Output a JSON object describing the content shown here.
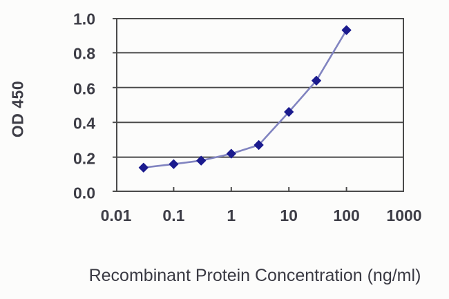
{
  "chart_data": {
    "type": "line",
    "title": "",
    "xlabel": "Recombinant Protein Concentration (ng/ml)",
    "ylabel": "OD 450",
    "x_scale": "log",
    "xlim": [
      0.01,
      1000
    ],
    "ylim": [
      0.0,
      1.0
    ],
    "x": [
      0.03,
      0.1,
      0.3,
      1,
      3,
      10,
      30,
      100
    ],
    "series": [
      {
        "name": "OD 450",
        "values": [
          0.14,
          0.16,
          0.18,
          0.22,
          0.27,
          0.46,
          0.64,
          0.93
        ]
      }
    ],
    "x_ticks": [
      "0.01",
      "0.1",
      "1",
      "10",
      "100",
      "1000"
    ],
    "y_ticks": [
      "1.0",
      "0.8",
      "0.6",
      "0.4",
      "0.2",
      "0.0"
    ],
    "grid": "horizontal",
    "legend": "none",
    "marker": "diamond",
    "colors": {
      "marker": "#1b1b8e",
      "line": "#8184c0",
      "grid": "#4a4a4a",
      "border": "#4a4a4a",
      "text": "#3d3d46",
      "caption_text": "#3a3a43",
      "background": "#fcfcfb"
    }
  }
}
